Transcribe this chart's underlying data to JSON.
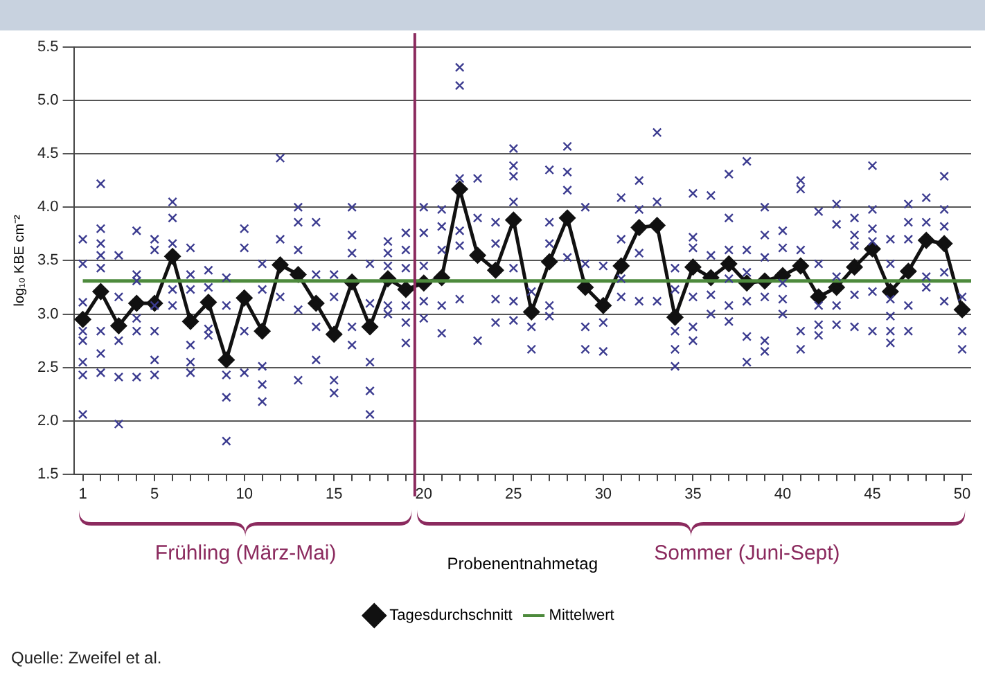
{
  "chart_data": {
    "type": "line",
    "xlabel": "Probenentnahmetag",
    "ylabel": "log₁₀ KBE cm⁻²",
    "xlim": [
      0.5,
      50.5
    ],
    "xticks": [
      1,
      {
        "value": 2,
        "label": null
      },
      {
        "value": 3,
        "label": null
      },
      {
        "value": 4,
        "label": null
      },
      5,
      {
        "value": 6,
        "label": null
      },
      {
        "value": 7,
        "label": null
      },
      {
        "value": 8,
        "label": null
      },
      {
        "value": 9,
        "label": null
      },
      10,
      {
        "value": 11,
        "label": null
      },
      {
        "value": 12,
        "label": null
      },
      {
        "value": 13,
        "label": null
      },
      {
        "value": 14,
        "label": null
      },
      15,
      {
        "value": 16,
        "label": null
      },
      {
        "value": 17,
        "label": null
      },
      {
        "value": 18,
        "label": null
      },
      {
        "value": 19,
        "label": null
      },
      20,
      {
        "value": 21,
        "label": null
      },
      {
        "value": 22,
        "label": null
      },
      {
        "value": 23,
        "label": null
      },
      {
        "value": 24,
        "label": null
      },
      25,
      {
        "value": 26,
        "label": null
      },
      {
        "value": 27,
        "label": null
      },
      {
        "value": 28,
        "label": null
      },
      {
        "value": 29,
        "label": null
      },
      30,
      {
        "value": 31,
        "label": null
      },
      {
        "value": 32,
        "label": null
      },
      {
        "value": 33,
        "label": null
      },
      {
        "value": 34,
        "label": null
      },
      35,
      {
        "value": 36,
        "label": null
      },
      {
        "value": 37,
        "label": null
      },
      {
        "value": 38,
        "label": null
      },
      {
        "value": 39,
        "label": null
      },
      40,
      {
        "value": 41,
        "label": null
      },
      {
        "value": 42,
        "label": null
      },
      {
        "value": 43,
        "label": null
      },
      {
        "value": 44,
        "label": null
      },
      45,
      {
        "value": 46,
        "label": null
      },
      {
        "value": 47,
        "label": null
      },
      {
        "value": 48,
        "label": null
      },
      {
        "value": 49,
        "label": null
      },
      50
    ],
    "ylim": [
      1.5,
      5.5
    ],
    "yticks": [
      1.5,
      {
        "value": 2,
        "label": "2.0"
      },
      2.5,
      {
        "value": 3,
        "label": "3.0"
      },
      3.5,
      {
        "value": 4,
        "label": "4.0"
      },
      4.5,
      {
        "value": 5,
        "label": "5.0"
      },
      5.5
    ],
    "grid": "y",
    "legend": "bottom",
    "series": [
      {
        "type": "scatter",
        "color": "#3c3c90",
        "marker": "cross",
        "x": [
          1,
          1,
          1,
          1,
          1,
          1,
          1,
          1,
          2,
          2,
          2,
          2,
          2,
          2,
          2,
          2,
          3,
          3,
          3,
          3,
          3,
          4,
          4,
          4,
          4,
          4,
          4,
          5,
          5,
          5,
          5,
          5,
          5,
          6,
          6,
          6,
          6,
          6,
          7,
          7,
          7,
          7,
          7,
          7,
          8,
          8,
          8,
          8,
          9,
          9,
          9,
          9,
          9,
          10,
          10,
          10,
          10,
          11,
          11,
          11,
          11,
          11,
          12,
          12,
          12,
          13,
          13,
          13,
          13,
          13,
          14,
          14,
          14,
          14,
          15,
          15,
          15,
          15,
          16,
          16,
          16,
          16,
          16,
          17,
          17,
          17,
          17,
          17,
          18,
          18,
          18,
          18,
          18,
          19,
          19,
          19,
          19,
          19,
          19,
          20,
          20,
          20,
          20,
          20,
          21,
          21,
          21,
          21,
          21,
          22,
          22,
          22,
          22,
          22,
          22,
          23,
          23,
          23,
          24,
          24,
          24,
          24,
          25,
          25,
          25,
          25,
          25,
          25,
          25,
          26,
          26,
          26,
          27,
          27,
          27,
          27,
          27,
          28,
          28,
          28,
          28,
          29,
          29,
          29,
          29,
          30,
          30,
          30,
          31,
          31,
          31,
          31,
          32,
          32,
          32,
          32,
          33,
          33,
          33,
          34,
          34,
          34,
          34,
          34,
          35,
          35,
          35,
          35,
          35,
          35,
          36,
          36,
          36,
          36,
          37,
          37,
          37,
          37,
          37,
          37,
          38,
          38,
          38,
          38,
          38,
          38,
          39,
          39,
          39,
          39,
          39,
          39,
          40,
          40,
          40,
          40,
          40,
          41,
          41,
          41,
          41,
          41,
          42,
          42,
          42,
          42,
          42,
          43,
          43,
          43,
          43,
          43,
          44,
          44,
          44,
          44,
          44,
          45,
          45,
          45,
          45,
          45,
          45,
          46,
          46,
          46,
          46,
          46,
          46,
          47,
          47,
          47,
          47,
          47,
          48,
          48,
          48,
          48,
          49,
          49,
          49,
          49,
          49,
          50,
          50,
          50
        ],
        "values": [
          3.7,
          3.47,
          3.11,
          2.84,
          2.75,
          2.55,
          2.43,
          2.06,
          4.22,
          3.8,
          3.66,
          3.55,
          3.43,
          2.84,
          2.63,
          2.45,
          3.55,
          3.16,
          2.75,
          2.41,
          1.97,
          3.78,
          3.37,
          3.31,
          2.96,
          2.84,
          2.41,
          3.7,
          3.6,
          3.08,
          2.84,
          2.57,
          2.43,
          4.05,
          3.9,
          3.66,
          3.23,
          3.08,
          3.62,
          3.37,
          3.23,
          2.71,
          2.55,
          2.45,
          3.41,
          3.25,
          2.86,
          2.8,
          3.34,
          3.08,
          2.43,
          2.22,
          1.81,
          3.8,
          3.62,
          2.84,
          2.45,
          3.47,
          3.23,
          2.51,
          2.34,
          2.18,
          4.46,
          3.7,
          3.16,
          4.0,
          3.86,
          3.6,
          3.04,
          2.38,
          3.86,
          3.37,
          2.88,
          2.57,
          3.37,
          3.16,
          2.38,
          2.26,
          4.0,
          3.74,
          3.57,
          2.88,
          2.71,
          3.47,
          3.1,
          2.55,
          2.28,
          2.06,
          3.68,
          3.57,
          3.45,
          3.08,
          3.0,
          3.76,
          3.6,
          3.43,
          3.08,
          2.92,
          2.73,
          4.0,
          3.76,
          3.45,
          3.12,
          2.96,
          3.98,
          3.82,
          3.6,
          3.08,
          2.82,
          5.31,
          5.14,
          4.27,
          3.78,
          3.64,
          3.14,
          4.27,
          3.9,
          2.75,
          3.86,
          3.66,
          3.14,
          2.92,
          4.55,
          4.39,
          4.29,
          4.05,
          3.43,
          3.12,
          2.94,
          3.21,
          2.88,
          2.67,
          4.35,
          3.86,
          3.66,
          3.08,
          2.98,
          4.57,
          4.33,
          4.16,
          3.53,
          4.0,
          3.47,
          2.88,
          2.67,
          3.45,
          2.92,
          2.65,
          4.09,
          3.7,
          3.33,
          3.16,
          4.25,
          3.98,
          3.57,
          3.12,
          4.7,
          4.05,
          3.12,
          3.43,
          3.23,
          2.84,
          2.67,
          2.51,
          4.13,
          3.72,
          3.62,
          3.16,
          2.88,
          2.75,
          4.11,
          3.55,
          3.18,
          3.0,
          4.31,
          3.9,
          3.6,
          3.33,
          3.08,
          2.93,
          4.43,
          3.6,
          3.39,
          3.12,
          2.79,
          2.55,
          4.0,
          3.74,
          3.53,
          3.16,
          2.75,
          2.65,
          3.78,
          3.62,
          3.29,
          3.14,
          3.0,
          4.25,
          4.17,
          3.6,
          2.84,
          2.67,
          3.96,
          3.47,
          3.08,
          2.9,
          2.8,
          4.03,
          3.84,
          3.35,
          3.08,
          2.9,
          3.9,
          3.74,
          3.64,
          3.18,
          2.88,
          4.39,
          3.98,
          3.8,
          3.68,
          3.21,
          2.84,
          3.7,
          3.47,
          3.14,
          2.98,
          2.84,
          2.73,
          4.03,
          3.86,
          3.7,
          3.08,
          2.84,
          4.09,
          3.86,
          3.35,
          3.25,
          4.29,
          3.98,
          3.82,
          3.39,
          3.12,
          3.16,
          2.84,
          2.67
        ]
      },
      {
        "name": "Mittelwert",
        "type": "line",
        "color": "#4d8a3c",
        "marker": "none",
        "x": [
          1,
          50.5
        ],
        "values": [
          3.31,
          3.31
        ]
      },
      {
        "name": "Tagesdurchschnitt",
        "type": "line",
        "color": "#111111",
        "marker": "diamond",
        "x": [
          1,
          2,
          3,
          4,
          5,
          6,
          7,
          8,
          9,
          10,
          11,
          12,
          13,
          14,
          15,
          16,
          17,
          18,
          19,
          20,
          21,
          22,
          23,
          24,
          25,
          26,
          27,
          28,
          29,
          30,
          31,
          32,
          33,
          34,
          35,
          36,
          37,
          38,
          39,
          40,
          41,
          42,
          43,
          44,
          45,
          46,
          47,
          48,
          49,
          50
        ],
        "values": [
          2.95,
          3.21,
          2.89,
          3.1,
          3.1,
          3.54,
          2.93,
          3.11,
          2.57,
          3.15,
          2.84,
          3.46,
          3.37,
          3.1,
          2.81,
          3.3,
          2.88,
          3.33,
          3.23,
          3.29,
          3.34,
          4.17,
          3.55,
          3.41,
          3.88,
          3.02,
          3.49,
          3.9,
          3.25,
          3.08,
          3.45,
          3.81,
          3.83,
          2.97,
          3.44,
          3.34,
          3.47,
          3.29,
          3.31,
          3.36,
          3.45,
          3.16,
          3.25,
          3.44,
          3.61,
          3.21,
          3.4,
          3.69,
          3.66,
          3.04
        ]
      }
    ],
    "ref_lines": [
      {
        "axis": "x",
        "value": 19.5,
        "color": "#8b2a5e"
      }
    ],
    "annotations": [
      "Frühling (März-Mai)",
      "Sommer (Juni-Sept)",
      "Quelle: Zweifel et al."
    ]
  }
}
